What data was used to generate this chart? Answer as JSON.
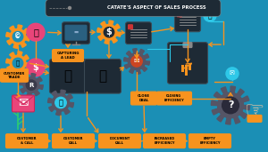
{
  "title": "CATATE'S ASPECT OF SALES PROCESS",
  "bg_color": "#1b8fb5",
  "dark_bg": "#1e2a35",
  "orange": "#f7931e",
  "pink": "#e8457a",
  "white": "#ffffff",
  "cyan": "#2ec8e8",
  "gray_gear": "#555566",
  "stages_bottom": [
    "CUSTOMER\n& CALL",
    "CUSTOMER\nCALL",
    "DOCUMENT\nCALL",
    "INCREASED\nEFFICIENCY",
    "EMPTY\nEFFICIENCY"
  ],
  "label_capturing": "CAPTURING\nA LEAD",
  "label_close": "CLOSE\nDEAL",
  "label_closing_eff": "CLOSING\nEFFICIENCY",
  "label_customer_trade": "CUSTOMER\nTRADE"
}
